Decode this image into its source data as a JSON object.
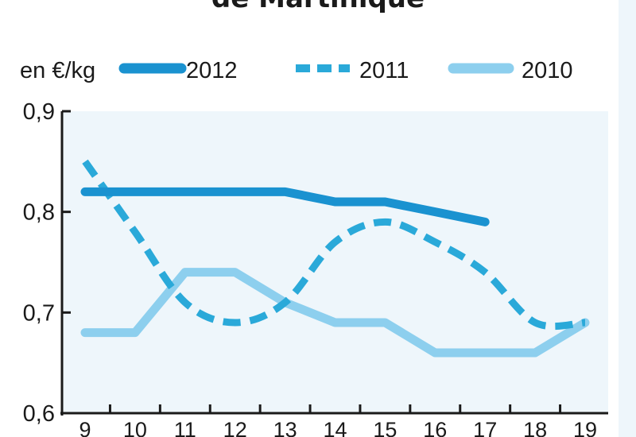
{
  "chart_data": {
    "type": "line",
    "title": "de Martinique",
    "ylabel": "en €/kg",
    "x": [
      9,
      10,
      11,
      12,
      13,
      14,
      15,
      16,
      17,
      18,
      19
    ],
    "x_tick_labels": [
      "9",
      "10",
      "11",
      "12",
      "13",
      "14",
      "15",
      "16",
      "17",
      "18",
      "19"
    ],
    "y_tick_labels": [
      "0,9",
      "0,8",
      "0,7",
      "0,6"
    ],
    "ylim": [
      0.6,
      0.9
    ],
    "xlim": [
      9,
      19
    ],
    "grid": false,
    "legend_position": "top",
    "series": [
      {
        "name": "2012",
        "color": "#1a92d0",
        "style": "solid",
        "x": [
          9,
          10,
          11,
          12,
          13,
          14,
          15,
          16,
          17
        ],
        "values": [
          0.82,
          0.82,
          0.82,
          0.82,
          0.82,
          0.81,
          0.81,
          0.8,
          0.79
        ]
      },
      {
        "name": "2011",
        "color": "#2aa9d9",
        "style": "dashed",
        "x": [
          9,
          10,
          11,
          12,
          13,
          14,
          15,
          16,
          17,
          18,
          19
        ],
        "values": [
          0.85,
          0.78,
          0.71,
          0.69,
          0.71,
          0.77,
          0.79,
          0.77,
          0.74,
          0.69,
          0.69
        ]
      },
      {
        "name": "2010",
        "color": "#8dcfee",
        "style": "solid",
        "x": [
          9,
          10,
          11,
          12,
          13,
          14,
          15,
          16,
          17,
          18,
          19
        ],
        "values": [
          0.68,
          0.68,
          0.74,
          0.74,
          0.71,
          0.69,
          0.69,
          0.66,
          0.66,
          0.66,
          0.69
        ]
      }
    ],
    "plot_background": "#eef6fb"
  }
}
